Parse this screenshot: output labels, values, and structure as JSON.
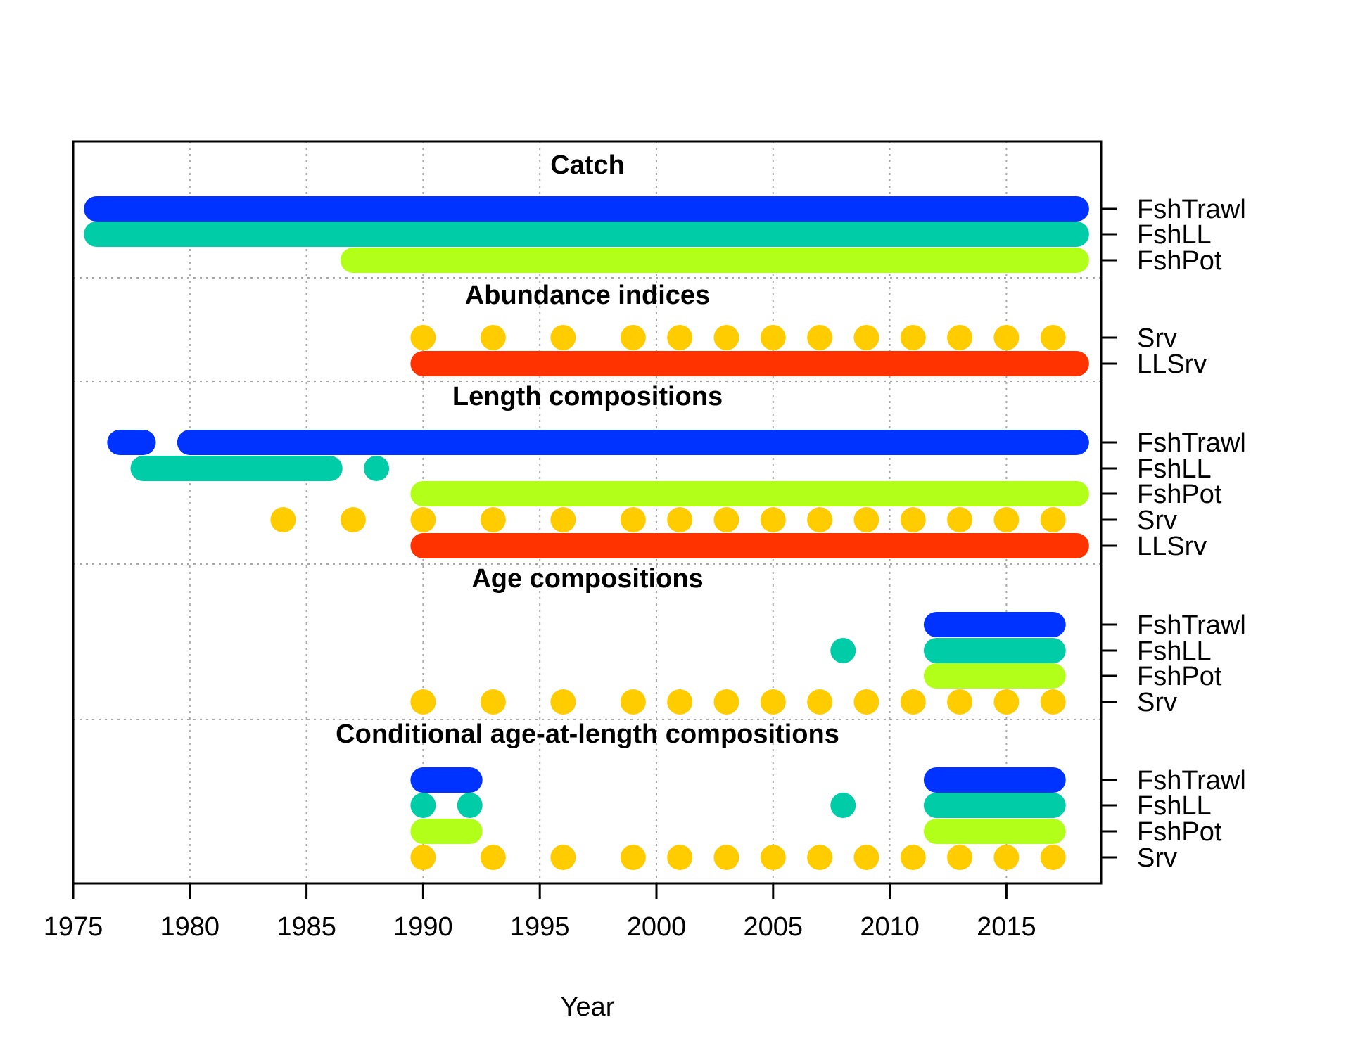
{
  "chart_data": {
    "type": "scatter",
    "xlabel": "Year",
    "xlim": [
      1975,
      2019
    ],
    "xticks": [
      1975,
      1980,
      1985,
      1990,
      1995,
      2000,
      2005,
      2010,
      2015
    ],
    "grid": true,
    "sections": [
      {
        "title": "Catch",
        "rows": [
          {
            "label": "FshTrawl",
            "color": "#0033FF",
            "segments": [
              [
                1976,
                2018
              ]
            ],
            "points": []
          },
          {
            "label": "FshLL",
            "color": "#00CCA8",
            "segments": [
              [
                1976,
                2018
              ]
            ],
            "points": []
          },
          {
            "label": "FshPot",
            "color": "#B2FF19",
            "segments": [
              [
                1987,
                2018
              ]
            ],
            "points": []
          }
        ]
      },
      {
        "title": "Abundance indices",
        "rows": [
          {
            "label": "Srv",
            "color": "#FFCC00",
            "segments": [],
            "points": [
              1990,
              1993,
              1996,
              1999,
              2001,
              2003,
              2005,
              2007,
              2009,
              2011,
              2013,
              2015,
              2017
            ]
          },
          {
            "label": "LLSrv",
            "color": "#FF3300",
            "segments": [
              [
                1990,
                2018
              ]
            ],
            "points": []
          }
        ]
      },
      {
        "title": "Length compositions",
        "rows": [
          {
            "label": "FshTrawl",
            "color": "#0033FF",
            "segments": [
              [
                1977,
                1978
              ],
              [
                1980,
                2018
              ]
            ],
            "points": []
          },
          {
            "label": "FshLL",
            "color": "#00CCA8",
            "segments": [
              [
                1978,
                1986
              ]
            ],
            "points": [
              1988
            ]
          },
          {
            "label": "FshPot",
            "color": "#B2FF19",
            "segments": [
              [
                1990,
                2018
              ]
            ],
            "points": []
          },
          {
            "label": "Srv",
            "color": "#FFCC00",
            "segments": [],
            "points": [
              1984,
              1987,
              1990,
              1993,
              1996,
              1999,
              2001,
              2003,
              2005,
              2007,
              2009,
              2011,
              2013,
              2015,
              2017
            ]
          },
          {
            "label": "LLSrv",
            "color": "#FF3300",
            "segments": [
              [
                1990,
                2018
              ]
            ],
            "points": []
          }
        ]
      },
      {
        "title": "Age compositions",
        "rows": [
          {
            "label": "FshTrawl",
            "color": "#0033FF",
            "segments": [
              [
                2012,
                2017
              ]
            ],
            "points": []
          },
          {
            "label": "FshLL",
            "color": "#00CCA8",
            "segments": [
              [
                2012,
                2017
              ]
            ],
            "points": [
              2008
            ]
          },
          {
            "label": "FshPot",
            "color": "#B2FF19",
            "segments": [
              [
                2012,
                2017
              ]
            ],
            "points": []
          },
          {
            "label": "Srv",
            "color": "#FFCC00",
            "segments": [],
            "points": [
              1990,
              1993,
              1996,
              1999,
              2001,
              2003,
              2005,
              2007,
              2009,
              2011,
              2013,
              2015,
              2017
            ]
          }
        ]
      },
      {
        "title": "Conditional age-at-length compositions",
        "rows": [
          {
            "label": "FshTrawl",
            "color": "#0033FF",
            "segments": [
              [
                1990,
                1992
              ],
              [
                2012,
                2017
              ]
            ],
            "points": []
          },
          {
            "label": "FshLL",
            "color": "#00CCA8",
            "segments": [
              [
                2012,
                2017
              ]
            ],
            "points": [
              1990,
              1992,
              2008
            ]
          },
          {
            "label": "FshPot",
            "color": "#B2FF19",
            "segments": [
              [
                1990,
                1992
              ],
              [
                2012,
                2017
              ]
            ],
            "points": []
          },
          {
            "label": "Srv",
            "color": "#FFCC00",
            "segments": [],
            "points": [
              1990,
              1993,
              1996,
              1999,
              2001,
              2003,
              2005,
              2007,
              2009,
              2011,
              2013,
              2015,
              2017
            ]
          }
        ]
      }
    ]
  }
}
